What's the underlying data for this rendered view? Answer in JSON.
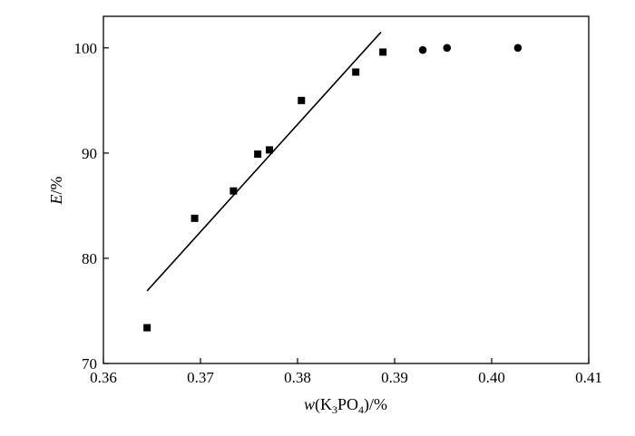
{
  "chart_data": {
    "type": "scatter",
    "title": "",
    "xlabel": {
      "var": "w",
      "open": "(K",
      "sub1": "3",
      "mid": "PO",
      "sub2": "4",
      "close": ")/%"
    },
    "ylabel": {
      "var": "E",
      "unit": "/%"
    },
    "xlim": [
      0.36,
      0.41
    ],
    "ylim": [
      70,
      103
    ],
    "x_ticks": [
      "0.36",
      "0.37",
      "0.38",
      "0.39",
      "0.40",
      "0.41"
    ],
    "x_tick_values": [
      0.36,
      0.37,
      0.38,
      0.39,
      0.4,
      0.41
    ],
    "y_ticks": [
      "70",
      "80",
      "90",
      "100"
    ],
    "y_tick_values": [
      70,
      80,
      90,
      100
    ],
    "grid": false,
    "legend": "none",
    "series": [
      {
        "marker": "square",
        "color": "#000000",
        "points": [
          {
            "x": 0.3645,
            "y": 73.4
          },
          {
            "x": 0.3694,
            "y": 83.8
          },
          {
            "x": 0.3734,
            "y": 86.4
          },
          {
            "x": 0.3759,
            "y": 89.9
          },
          {
            "x": 0.3771,
            "y": 90.3
          },
          {
            "x": 0.3804,
            "y": 95.0
          },
          {
            "x": 0.386,
            "y": 97.7
          },
          {
            "x": 0.3888,
            "y": 99.6
          }
        ]
      },
      {
        "marker": "circle",
        "color": "#000000",
        "points": [
          {
            "x": 0.3929,
            "y": 99.8
          },
          {
            "x": 0.3954,
            "y": 100.0
          },
          {
            "x": 0.4027,
            "y": 100.0
          }
        ]
      }
    ],
    "fit_line": {
      "color": "#000000",
      "x": [
        0.3645,
        0.3886
      ],
      "y": [
        76.9,
        101.5
      ]
    }
  }
}
